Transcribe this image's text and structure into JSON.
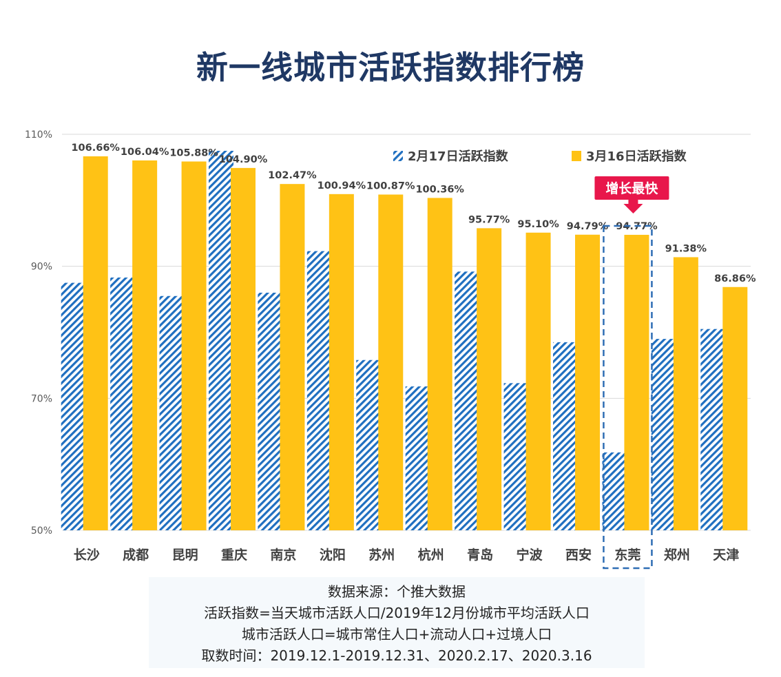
{
  "chart_data": {
    "type": "bar",
    "title": "新一线城市活跃指数排行榜",
    "categories": [
      "长沙",
      "成都",
      "昆明",
      "重庆",
      "南京",
      "沈阳",
      "苏州",
      "杭州",
      "青岛",
      "宁波",
      "西安",
      "东莞",
      "郑州",
      "天津"
    ],
    "series": [
      {
        "name": "2月17日活跃指数",
        "values": [
          87.5,
          88.3,
          85.5,
          107.5,
          86.0,
          92.3,
          75.8,
          71.8,
          89.2,
          72.3,
          78.5,
          61.8,
          79.0,
          80.5
        ],
        "color": "#1f6fc0",
        "pattern": "diagonal-hatch"
      },
      {
        "name": "3月16日活跃指数",
        "values": [
          106.66,
          106.04,
          105.88,
          104.9,
          102.47,
          100.94,
          100.87,
          100.36,
          95.77,
          95.1,
          94.79,
          94.77,
          91.38,
          86.86
        ],
        "color": "#ffc215",
        "labels": [
          "106.66%",
          "106.04%",
          "105.88%",
          "104.90%",
          "102.47%",
          "100.94%",
          "100.87%",
          "100.36%",
          "95.77%",
          "95.10%",
          "94.79%",
          "94.77%",
          "91.38%",
          "86.86%"
        ]
      }
    ],
    "ylim": [
      50,
      110
    ],
    "yticks": [
      50,
      70,
      90,
      110
    ],
    "ytick_labels": [
      "50%",
      "70%",
      "90%",
      "110%"
    ],
    "grid": true,
    "legend": "top-right",
    "highlight": {
      "category": "东莞",
      "label": "增长最快",
      "color": "#e8174b"
    }
  },
  "source": {
    "lines": [
      "数据来源：个推大数据",
      "活跃指数=当天城市活跃人口/2019年12月份城市平均活跃人口",
      "城市活跃人口=城市常住人口+流动人口+过境人口",
      "取数时间：2019.12.1-2019.12.31、2020.2.17、2020.3.16"
    ]
  }
}
